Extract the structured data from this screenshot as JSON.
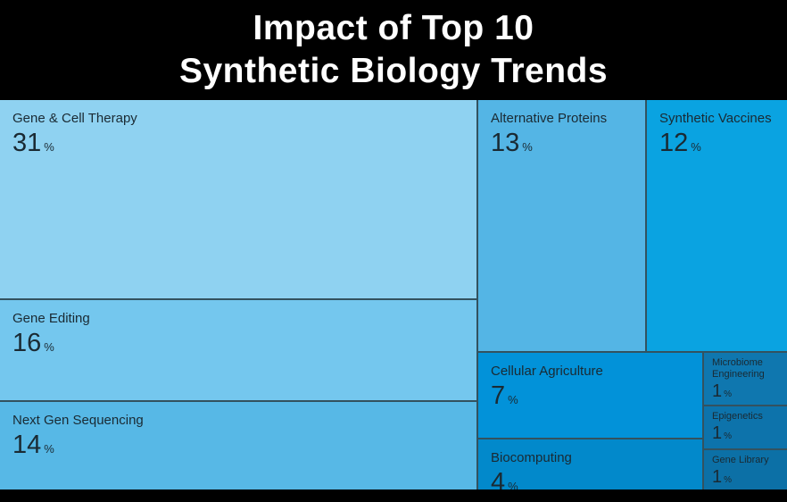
{
  "header": {
    "title_line1": "Impact of Top 10",
    "title_line2": "Synthetic Biology Trends"
  },
  "chart_data": {
    "type": "treemap",
    "title": "Impact of Top 10 Synthetic Biology Trends",
    "unit": "%",
    "legend_position": "none",
    "items": [
      {
        "label": "Gene & Cell Therapy",
        "value": 31,
        "unit": "%",
        "color": "#8fd2f1"
      },
      {
        "label": "Gene Editing",
        "value": 16,
        "unit": "%",
        "color": "#74c7ee"
      },
      {
        "label": "Next Gen Sequencing",
        "value": 14,
        "unit": "%",
        "color": "#57b8e6"
      },
      {
        "label": "Alternative Proteins",
        "value": 13,
        "unit": "%",
        "color": "#54b5e5"
      },
      {
        "label": "Synthetic Vaccines",
        "value": 12,
        "unit": "%",
        "color": "#0aa3e1"
      },
      {
        "label": "Cellular Agriculture",
        "value": 7,
        "unit": "%",
        "color": "#0292d9"
      },
      {
        "label": "Biocomputing",
        "value": 4,
        "unit": "%",
        "color": "#0289cb"
      },
      {
        "label": "Microbiome Engineering",
        "value": 1,
        "unit": "%",
        "color": "#0f77af"
      },
      {
        "label": "Epigenetics",
        "value": 1,
        "unit": "%",
        "color": "#0d73ab"
      },
      {
        "label": "Gene Library",
        "value": 1,
        "unit": "%",
        "color": "#0c70a6"
      }
    ],
    "colors": {
      "background": "#000000",
      "divider": "#33525f",
      "tile_text": "#1a2a33",
      "title_text": "#ffffff"
    }
  }
}
